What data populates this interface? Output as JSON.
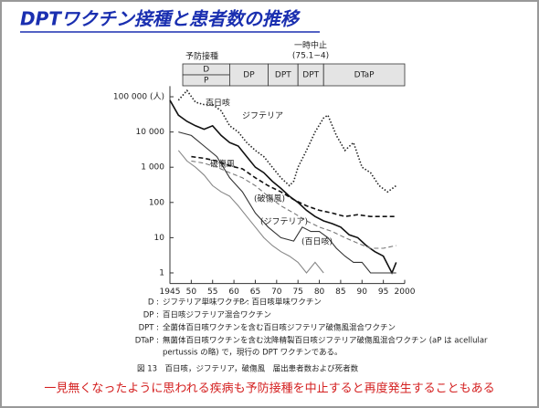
{
  "title": "DPTワクチン接種と患者数の推移",
  "chart_data": {
    "type": "line",
    "timeline_title": "予防接種",
    "suspension_note": [
      "一時中止",
      "(75.1~4)"
    ],
    "timeline": [
      {
        "label": "D",
        "start": 1948,
        "end": 1959
      },
      {
        "label": "P",
        "start": 1948,
        "end": 1959
      },
      {
        "label": "DP",
        "start": 1959,
        "end": 1968
      },
      {
        "label": "DPT",
        "start": 1968,
        "end": 1975
      },
      {
        "label": "DPT",
        "start": 1975,
        "end": 1981
      },
      {
        "label": "DTaP",
        "start": 1981,
        "end": 2000
      }
    ],
    "xlim": [
      1945,
      2000
    ],
    "xticks": [
      {
        "value": 1945,
        "label": "1945"
      },
      {
        "value": 1950,
        "label": "50"
      },
      {
        "value": 1955,
        "label": "55"
      },
      {
        "value": 1960,
        "label": "60"
      },
      {
        "value": 1965,
        "label": "65"
      },
      {
        "value": 1970,
        "label": "70"
      },
      {
        "value": 1975,
        "label": "75"
      },
      {
        "value": 1980,
        "label": "80"
      },
      {
        "value": 1985,
        "label": "85"
      },
      {
        "value": 1990,
        "label": "90"
      },
      {
        "value": 1995,
        "label": "95"
      },
      {
        "value": 2000,
        "label": "2000"
      }
    ],
    "log_y": true,
    "ylim": [
      0.5,
      200000
    ],
    "yticks": [
      {
        "value": 100000,
        "label": "100 000 (人)"
      },
      {
        "value": 10000,
        "label": "10 000"
      },
      {
        "value": 1000,
        "label": "1 000"
      },
      {
        "value": 100,
        "label": "100"
      },
      {
        "value": 10,
        "label": "10"
      },
      {
        "value": 1,
        "label": "1"
      }
    ],
    "series": [
      {
        "name": "百日咳",
        "color": "#222",
        "style": "dotted",
        "x": [
          1947,
          1949,
          1951,
          1953,
          1955,
          1957,
          1959,
          1961,
          1963,
          1965,
          1967,
          1969,
          1971,
          1973,
          1974,
          1975,
          1977,
          1979,
          1981,
          1982,
          1984,
          1986,
          1988,
          1990,
          1992,
          1994,
          1996,
          1998
        ],
        "values": [
          80000,
          150000,
          70000,
          60000,
          60000,
          40000,
          15000,
          10000,
          5000,
          3000,
          2000,
          1000,
          500,
          300,
          400,
          1000,
          3000,
          10000,
          25000,
          30000,
          8000,
          3000,
          5000,
          1000,
          700,
          300,
          200,
          300
        ]
      },
      {
        "name": "ジフテリア",
        "color": "#111",
        "style": "solid",
        "x": [
          1945,
          1947,
          1949,
          1951,
          1953,
          1955,
          1957,
          1959,
          1961,
          1963,
          1965,
          1967,
          1969,
          1971,
          1973,
          1975,
          1977,
          1979,
          1981,
          1983,
          1985,
          1987,
          1989,
          1991,
          1993,
          1995,
          1997,
          1998
        ],
        "values": [
          80000,
          30000,
          20000,
          15000,
          12000,
          15000,
          8000,
          5000,
          4000,
          2000,
          1000,
          700,
          400,
          250,
          150,
          100,
          60,
          40,
          30,
          25,
          20,
          12,
          10,
          6,
          4,
          3,
          1,
          2
        ]
      },
      {
        "name": "破傷風",
        "color": "#111",
        "style": "dashed",
        "x": [
          1950,
          1953,
          1956,
          1959,
          1962,
          1965,
          1968,
          1971,
          1974,
          1977,
          1980,
          1983,
          1986,
          1989,
          1992,
          1995,
          1998
        ],
        "values": [
          2000,
          1800,
          1500,
          1100,
          900,
          500,
          300,
          200,
          120,
          80,
          60,
          50,
          40,
          45,
          40,
          40,
          40
        ]
      },
      {
        "name": "(破傷風)",
        "color": "#777",
        "style": "dashed",
        "x": [
          1950,
          1953,
          1956,
          1959,
          1962,
          1965,
          1968,
          1971,
          1974,
          1977,
          1980,
          1983,
          1986,
          1989,
          1992,
          1995,
          1998
        ],
        "values": [
          1500,
          1300,
          1000,
          700,
          500,
          300,
          150,
          80,
          50,
          30,
          20,
          15,
          10,
          7,
          5,
          5,
          6
        ]
      },
      {
        "name": "(ジフテリア)",
        "color": "#888",
        "style": "solid",
        "x": [
          1947,
          1949,
          1951,
          1953,
          1955,
          1957,
          1959,
          1961,
          1963,
          1965,
          1967,
          1969,
          1971,
          1973,
          1975,
          1977,
          1979,
          1981
        ],
        "values": [
          3000,
          1500,
          1000,
          600,
          300,
          200,
          150,
          80,
          40,
          20,
          10,
          6,
          4,
          3,
          2,
          1,
          2,
          1
        ]
      },
      {
        "name": "(百日咳)",
        "color": "#333",
        "style": "solid",
        "x": [
          1947,
          1950,
          1953,
          1956,
          1959,
          1962,
          1965,
          1968,
          1971,
          1974,
          1976,
          1978,
          1980,
          1982,
          1984,
          1986,
          1988,
          1990,
          1992,
          1995,
          1998
        ],
        "values": [
          10000,
          8000,
          4000,
          2000,
          500,
          200,
          50,
          20,
          10,
          8,
          20,
          15,
          15,
          10,
          5,
          3,
          2,
          2,
          1,
          1,
          1
        ]
      }
    ]
  },
  "notes": [
    [
      "D :",
      "ジフテリア単味ワクチン",
      "P : 百日咳単味ワクチン"
    ],
    [
      "DP :",
      "百日咳ジフテリア混合ワクチン"
    ],
    [
      "DPT :",
      "全菌体百日咳ワクチンを含む百日咳ジフテリア破傷風混合ワクチン"
    ],
    [
      "DTaP :",
      "無菌体百日咳ワクチンを含む沈降精製百日咳ジフテリア破傷風混合ワクチン (aP は acellular",
      "pertussis の略) で，現行の DPT ワクチンである。"
    ]
  ],
  "caption": "図 13　百日咳，ジフテリア，破傷風　届出患者数および死者数",
  "message": "一見無くなったように思われる疾病も予防接種を中止すると再度発生することもある"
}
